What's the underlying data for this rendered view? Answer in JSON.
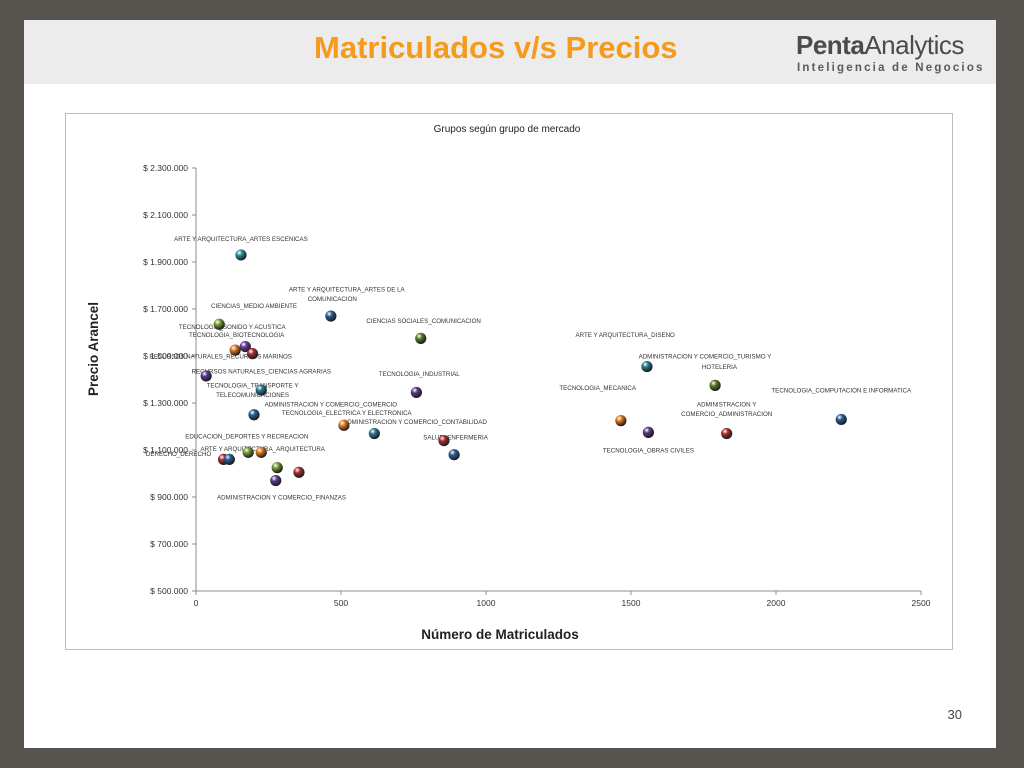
{
  "slide": {
    "title": "Matriculados v/s Precios",
    "brand_bold": "Penta",
    "brand_regular": "Analytics",
    "brand_tagline": "Inteligencia de Negocios",
    "page_number": "30"
  },
  "chart_data": {
    "type": "scatter",
    "title": "Grupos según grupo de mercado",
    "xlabel": "Número de Matriculados",
    "ylabel": "Precio Arancel",
    "xlim": [
      0,
      2500
    ],
    "ylim": [
      500000,
      2300000
    ],
    "x_ticks": [
      "0",
      "500",
      "1000",
      "1500",
      "2000",
      "2500"
    ],
    "y_ticks": [
      "$ 500.000",
      "$ 700.000",
      "$ 900.000",
      "$ 1.100.000",
      "$ 1.300.000",
      "$ 1.500.000",
      "$ 1.700.000",
      "$ 1.900.000",
      "$ 2.100.000",
      "$ 2.300.000"
    ],
    "grid": false,
    "legend": "none",
    "points": [
      {
        "x": 155,
        "y": 1930000,
        "color": "#2e8fa0",
        "label": "ARTE Y ARQUITECTURA_ARTES  ESCENICAS"
      },
      {
        "x": 465,
        "y": 1670000,
        "color": "#2b5d96",
        "label": "ARTE Y ARQUITECTURA_ARTES  DE LA COMUNICACION"
      },
      {
        "x": 80,
        "y": 1635000,
        "color": "#7a9d3a",
        "label": "CIENCIAS_MEDIO  AMBIENTE"
      },
      {
        "x": 775,
        "y": 1575000,
        "color": "#5e7e2c",
        "label": "CIENCIAS SOCIALES_COMUNICACION"
      },
      {
        "x": 170,
        "y": 1540000,
        "color": "#6b3fa0",
        "label": "TECNOLOGIA_SONIDO Y ACUSTICA"
      },
      {
        "x": 135,
        "y": 1525000,
        "color": "#e07b22",
        "label": "TECNOLOGIA_BIOTECNOLOGIA"
      },
      {
        "x": 195,
        "y": 1510000,
        "color": "#a82f2f",
        "label": "RECURSOS NATURALES_RECURSOS  MARINOS"
      },
      {
        "x": 1555,
        "y": 1455000,
        "color": "#2a7a8c",
        "label": "ARTE Y ARQUITECTURA_DISENO"
      },
      {
        "x": 35,
        "y": 1415000,
        "color": "#5b3a8e",
        "label": "RECURSOS  NATURALES_CIENCIAS  AGRARIAS"
      },
      {
        "x": 1790,
        "y": 1375000,
        "color": "#5e7e2c",
        "label": "ADMINISTRACION Y COMERCIO_TURISMO Y HOTELERIA"
      },
      {
        "x": 760,
        "y": 1345000,
        "color": "#5b3a8e",
        "label": "TECNOLOGIA_INDUSTRIAL"
      },
      {
        "x": 225,
        "y": 1355000,
        "color": "#2a7a8c",
        "label": "TECNOLOGIA_TRANSPORTE Y TELECOMUNICACIONES"
      },
      {
        "x": 1465,
        "y": 1225000,
        "color": "#e07b22",
        "label": "TECNOLOGIA_MECANICA"
      },
      {
        "x": 2225,
        "y": 1230000,
        "color": "#2b5d96",
        "label": "TECNOLOGIA_COMPUTACION E INFORMATICA"
      },
      {
        "x": 200,
        "y": 1250000,
        "color": "#2b5d96",
        "label": "ADMINISTRACION Y COMERCIO_COMERCIO"
      },
      {
        "x": 510,
        "y": 1205000,
        "color": "#e07b22",
        "label": "TECNOLOGIA_ELECTRICA Y ELECTRONICA"
      },
      {
        "x": 615,
        "y": 1170000,
        "color": "#2a7a8c",
        "label": "ADMINISTRACION Y COMERCIO_CONTABILIDAD"
      },
      {
        "x": 1560,
        "y": 1175000,
        "color": "#5b3a8e",
        "label": "TECNOLOGIA_OBRAS CIVILES"
      },
      {
        "x": 1830,
        "y": 1170000,
        "color": "#a82f2f",
        "label": "ADMINISTRACION Y COMERCIO_ADMINISTRACION"
      },
      {
        "x": 855,
        "y": 1140000,
        "color": "#a82f2f",
        "label": "SALUD_ENFERMERIA"
      },
      {
        "x": 890,
        "y": 1080000,
        "color": "#2b5d96",
        "label": "SALUD_ENFERMERIA"
      },
      {
        "x": 180,
        "y": 1090000,
        "color": "#7a9d3a",
        "label": "EDUCACION_DEPORTES Y RECREACION"
      },
      {
        "x": 225,
        "y": 1090000,
        "color": "#e07b22",
        "label": "ARTE Y ARQUITECTURA_ARQUITECTURA"
      },
      {
        "x": 95,
        "y": 1060000,
        "color": "#a82f2f",
        "label": "DERECHO_DERECHO"
      },
      {
        "x": 115,
        "y": 1060000,
        "color": "#2b5d96",
        "label": "DERECHO_DERECHO"
      },
      {
        "x": 280,
        "y": 1025000,
        "color": "#7a9d3a",
        "label": ""
      },
      {
        "x": 355,
        "y": 1005000,
        "color": "#a82f2f",
        "label": ""
      },
      {
        "x": 275,
        "y": 970000,
        "color": "#5b3a8e",
        "label": "ADMINISTRACION Y COMERCIO_FINANZAS"
      }
    ],
    "annotations": [
      {
        "text": "ARTE Y ARQUITECTURA_ARTES  ESCENICAS",
        "x": 155,
        "y": 1990000
      },
      {
        "text": "ARTE Y ARQUITECTURA_ARTES  DE LA",
        "x": 520,
        "y": 1775000
      },
      {
        "text": "COMUNICACION",
        "x": 470,
        "y": 1735000
      },
      {
        "text": "CIENCIAS_MEDIO  AMBIENTE",
        "x": 200,
        "y": 1705000
      },
      {
        "text": "CIENCIAS SOCIALES_COMUNICACION",
        "x": 785,
        "y": 1640000
      },
      {
        "text": "TECNOLOGIA_SONIDO Y ACUSTICA",
        "x": 125,
        "y": 1615000
      },
      {
        "text": "TECNOLOGIA_BIOTECNOLOGIA",
        "x": 140,
        "y": 1580000
      },
      {
        "text": "RECURSOS NATURALES_RECURSOS  MARINOS",
        "x": 85,
        "y": 1490000
      },
      {
        "text": "ARTE Y ARQUITECTURA_DISENO",
        "x": 1480,
        "y": 1580000
      },
      {
        "text": "ADMINISTRACION Y COMERCIO_TURISMO Y",
        "x": 1755,
        "y": 1490000
      },
      {
        "text": "HOTELERIA",
        "x": 1805,
        "y": 1445000
      },
      {
        "text": "RECURSOS  NATURALES_CIENCIAS  AGRARIAS",
        "x": 225,
        "y": 1425000
      },
      {
        "text": "TECNOLOGIA_INDUSTRIAL",
        "x": 770,
        "y": 1415000
      },
      {
        "text": "TECNOLOGIA_TRANSPORTE Y",
        "x": 195,
        "y": 1365000
      },
      {
        "text": "TELECOMUNICACIONES",
        "x": 195,
        "y": 1325000
      },
      {
        "text": "TECNOLOGIA_MECANICA",
        "x": 1385,
        "y": 1355000
      },
      {
        "text": "TECNOLOGIA_COMPUTACION E INFORMATICA",
        "x": 2225,
        "y": 1345000
      },
      {
        "text": "ADMINISTRACION Y COMERCIO_COMERCIO",
        "x": 465,
        "y": 1285000
      },
      {
        "text": "ADMINISTRACION Y",
        "x": 1830,
        "y": 1285000
      },
      {
        "text": "COMERCIO_ADMINISTRACION",
        "x": 1830,
        "y": 1245000
      },
      {
        "text": "TECNOLOGIA_ELECTRICA Y ELECTRONICA",
        "x": 520,
        "y": 1250000
      },
      {
        "text": "ADMINISTRACION Y COMERCIO_CONTABILIDAD",
        "x": 755,
        "y": 1210000
      },
      {
        "text": "EDUCACION_DEPORTES Y RECREACION",
        "x": 175,
        "y": 1150000
      },
      {
        "text": "SALUD_ENFERMERIA",
        "x": 895,
        "y": 1145000
      },
      {
        "text": "ARTE Y ARQUITECTURA_ARQUITECTURA",
        "x": 230,
        "y": 1095000
      },
      {
        "text": "TECNOLOGIA_OBRAS CIVILES",
        "x": 1560,
        "y": 1090000
      },
      {
        "text": "DERECHO_DERECHO",
        "x": -60,
        "y": 1075000
      },
      {
        "text": "ADMINISTRACION Y COMERCIO_FINANZAS",
        "x": 295,
        "y": 890000
      }
    ]
  }
}
